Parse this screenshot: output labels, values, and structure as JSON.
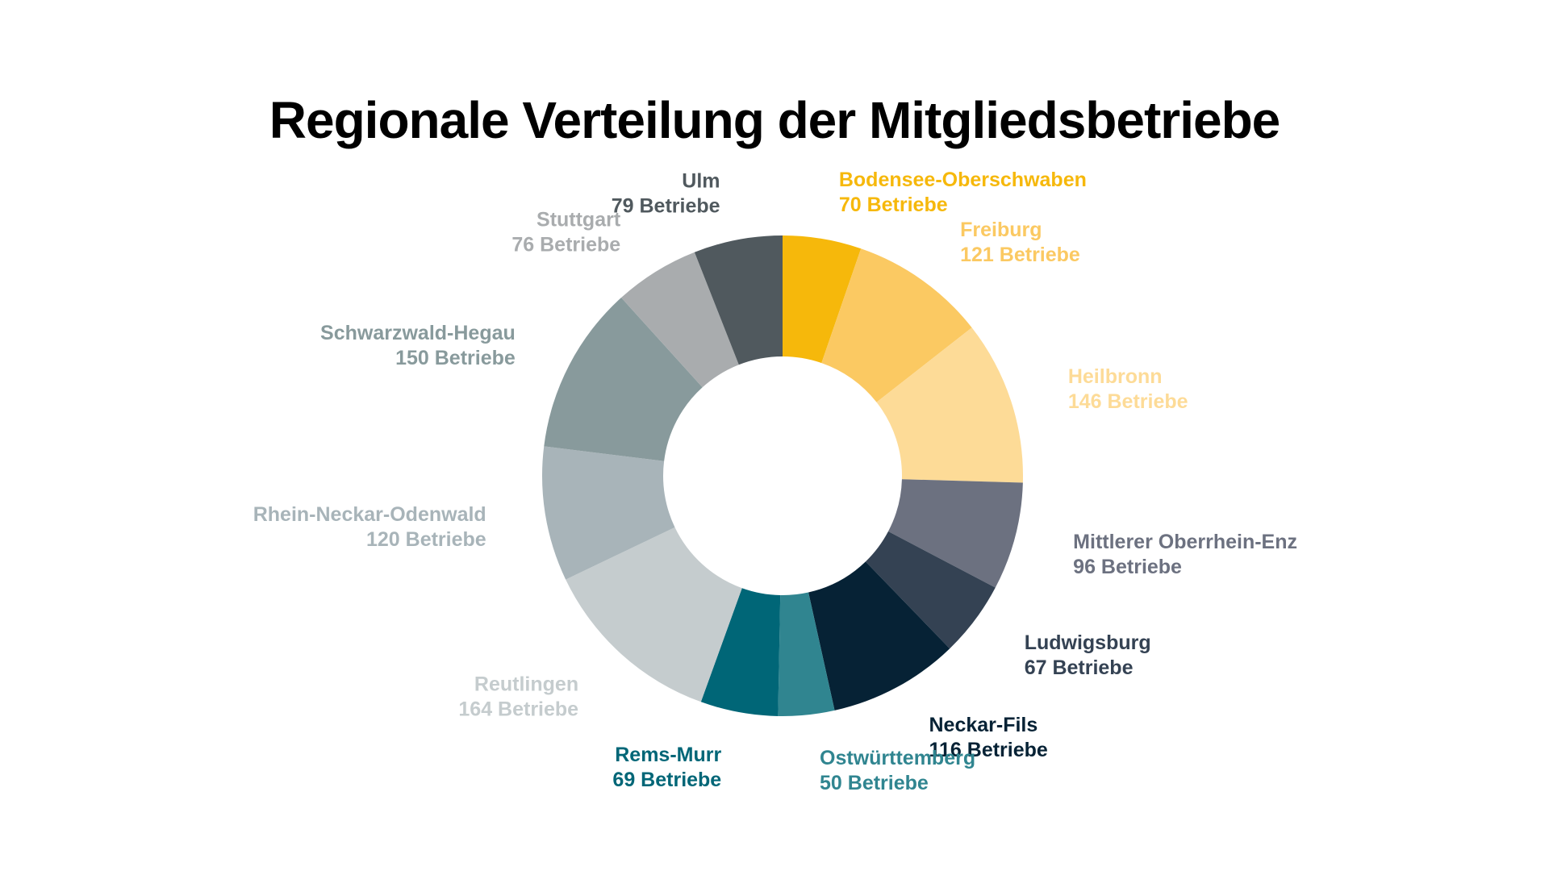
{
  "chart_data": {
    "type": "pie",
    "variant": "donut",
    "title": "Regionale Verteilung der Mitgliedsbetriebe",
    "start": "top",
    "direction": "clockwise",
    "slices": [
      {
        "region": "Bodensee-Oberschwaben",
        "value": 70,
        "value_label": "70 Betriebe",
        "color": "#F6B80B"
      },
      {
        "region": "Freiburg",
        "value": 121,
        "value_label": "121 Betriebe",
        "color": "#FBC962"
      },
      {
        "region": "Heilbronn",
        "value": 146,
        "value_label": "146 Betriebe",
        "color": "#FDDB97"
      },
      {
        "region": "Mittlerer Oberrhein-Enz",
        "value": 96,
        "value_label": "96 Betriebe",
        "color": "#6C7180"
      },
      {
        "region": "Ludwigsburg",
        "value": 67,
        "value_label": "67 Betriebe",
        "color": "#344253"
      },
      {
        "region": "Neckar-Fils",
        "value": 116,
        "value_label": "116 Betriebe",
        "color": "#062235"
      },
      {
        "region": "Ostwürttemberg",
        "value": 50,
        "value_label": "50 Betriebe",
        "color": "#308590"
      },
      {
        "region": "Rems-Murr",
        "value": 69,
        "value_label": "69 Betriebe",
        "color": "#006677"
      },
      {
        "region": "Reutlingen",
        "value": 164,
        "value_label": "164 Betriebe",
        "color": "#C5CCCE"
      },
      {
        "region": "Rhein-Neckar-Odenwald",
        "value": 120,
        "value_label": "120 Betriebe",
        "color": "#A8B4B9"
      },
      {
        "region": "Schwarzwald-Hegau",
        "value": 150,
        "value_label": "150 Betriebe",
        "color": "#889A9C"
      },
      {
        "region": "Stuttgart",
        "value": 76,
        "value_label": "76 Betriebe",
        "color": "#A9ACAE"
      },
      {
        "region": "Ulm",
        "value": 79,
        "value_label": "79 Betriebe",
        "color": "#50595E"
      }
    ]
  }
}
